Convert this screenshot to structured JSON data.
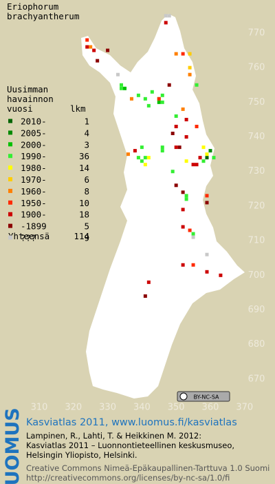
{
  "title": [
    "Eriophorum",
    "brachyantherum"
  ],
  "legend": {
    "heading": [
      "Uusimman",
      "havainnon",
      "vuosi"
    ],
    "count_heading": "lkm",
    "entries": [
      {
        "label": "2010-",
        "count": 1,
        "color": "#006400",
        "points": [
          [
            359,
            734
          ]
        ]
      },
      {
        "label": "2005-",
        "count": 4,
        "color": "#008a00",
        "points": [
          [
            360,
            736
          ]
        ]
      },
      {
        "label": "2000-",
        "count": 3,
        "color": "#00c000",
        "points": [
          [
            335,
            754
          ],
          [
            345,
            750
          ]
        ]
      },
      {
        "label": "1990-",
        "count": 36,
        "color": "#33ee33",
        "points": [
          [
            334,
            755
          ],
          [
            334,
            754
          ],
          [
            339,
            752
          ],
          [
            341,
            751
          ],
          [
            343,
            753
          ],
          [
            346,
            752
          ],
          [
            346,
            750
          ],
          [
            342,
            749
          ],
          [
            356,
            755
          ],
          [
            345,
            751
          ],
          [
            350,
            746
          ],
          [
            340,
            737
          ],
          [
            346,
            736
          ],
          [
            346,
            737
          ],
          [
            339,
            734
          ],
          [
            340,
            733
          ],
          [
            341,
            734
          ],
          [
            361,
            734
          ],
          [
            358,
            733
          ],
          [
            349,
            730
          ],
          [
            353,
            723
          ],
          [
            353,
            722
          ],
          [
            355,
            712
          ]
        ]
      },
      {
        "label": "1980-",
        "count": 14,
        "color": "#ffff00",
        "points": [
          [
            341,
            732
          ],
          [
            342,
            734
          ],
          [
            358,
            737
          ],
          [
            359,
            735
          ],
          [
            353,
            733
          ]
        ]
      },
      {
        "label": "1970-",
        "count": 6,
        "color": "#ffcc00",
        "points": [
          [
            354,
            764
          ],
          [
            354,
            760
          ]
        ]
      },
      {
        "label": "1960-",
        "count": 8,
        "color": "#ff7f00",
        "points": [
          [
            325,
            766
          ],
          [
            350,
            764
          ],
          [
            354,
            758
          ],
          [
            337,
            751
          ],
          [
            352,
            748
          ],
          [
            336,
            735
          ]
        ]
      },
      {
        "label": "1950-",
        "count": 10,
        "color": "#ff2a00",
        "points": [
          [
            324,
            768
          ],
          [
            352,
            764
          ],
          [
            345,
            751
          ],
          [
            356,
            743
          ],
          [
            359,
            723
          ],
          [
            354,
            713
          ],
          [
            355,
            703
          ]
        ]
      },
      {
        "label": "1900-",
        "count": 18,
        "color": "#cc0000",
        "points": [
          [
            324,
            766
          ],
          [
            326,
            765
          ],
          [
            347,
            773
          ],
          [
            353,
            745
          ],
          [
            350,
            743
          ],
          [
            353,
            740
          ],
          [
            338,
            736
          ],
          [
            350,
            737
          ],
          [
            357,
            734
          ],
          [
            356,
            732
          ],
          [
            355,
            732
          ],
          [
            352,
            719
          ],
          [
            352,
            714
          ],
          [
            352,
            703
          ],
          [
            359,
            701
          ],
          [
            363,
            700
          ],
          [
            342,
            698
          ]
        ]
      },
      {
        "label": "-1899",
        "count": 5,
        "color": "#8b0000",
        "points": [
          [
            327,
            762
          ],
          [
            330,
            765
          ],
          [
            348,
            755
          ],
          [
            349,
            741
          ],
          [
            351,
            737
          ],
          [
            350,
            726
          ],
          [
            352,
            724
          ],
          [
            359,
            721
          ],
          [
            341,
            694
          ]
        ]
      },
      {
        "label": "???",
        "count": 9,
        "color": "#c8c8c8",
        "points": [
          [
            347,
            775
          ],
          [
            348,
            775
          ],
          [
            333,
            758
          ],
          [
            355,
            711
          ],
          [
            359,
            706
          ]
        ]
      }
    ],
    "total_label": "Yhteensä",
    "total": 114
  },
  "xlim": [
    300,
    378
  ],
  "xticks": [
    310,
    320,
    330,
    340,
    350,
    360,
    370
  ],
  "ylim": [
    664,
    778
  ],
  "yticks": [
    670,
    680,
    690,
    700,
    710,
    720,
    730,
    740,
    750,
    760,
    770
  ],
  "cc_badge": "BY-NC-SA",
  "footer": {
    "logo": "LUOMUS",
    "atlas": "Kasviatlas 2011, www.luomus.fi/kasviatlas",
    "citation": [
      "Lampinen, R., Lahti, T. & Heikkinen M. 2012:",
      "Kasviatlas 2011 – Luonnontieteellinen keskusmuseo,",
      "Helsingin Yliopisto, Helsinki."
    ],
    "license": [
      "Creative Commons Nimeä-Epäkaupallinen-Tarttuva 1.0 Suomi",
      "http://creativecommons.org/licenses/by-nc-sa/1.0/fi"
    ]
  }
}
